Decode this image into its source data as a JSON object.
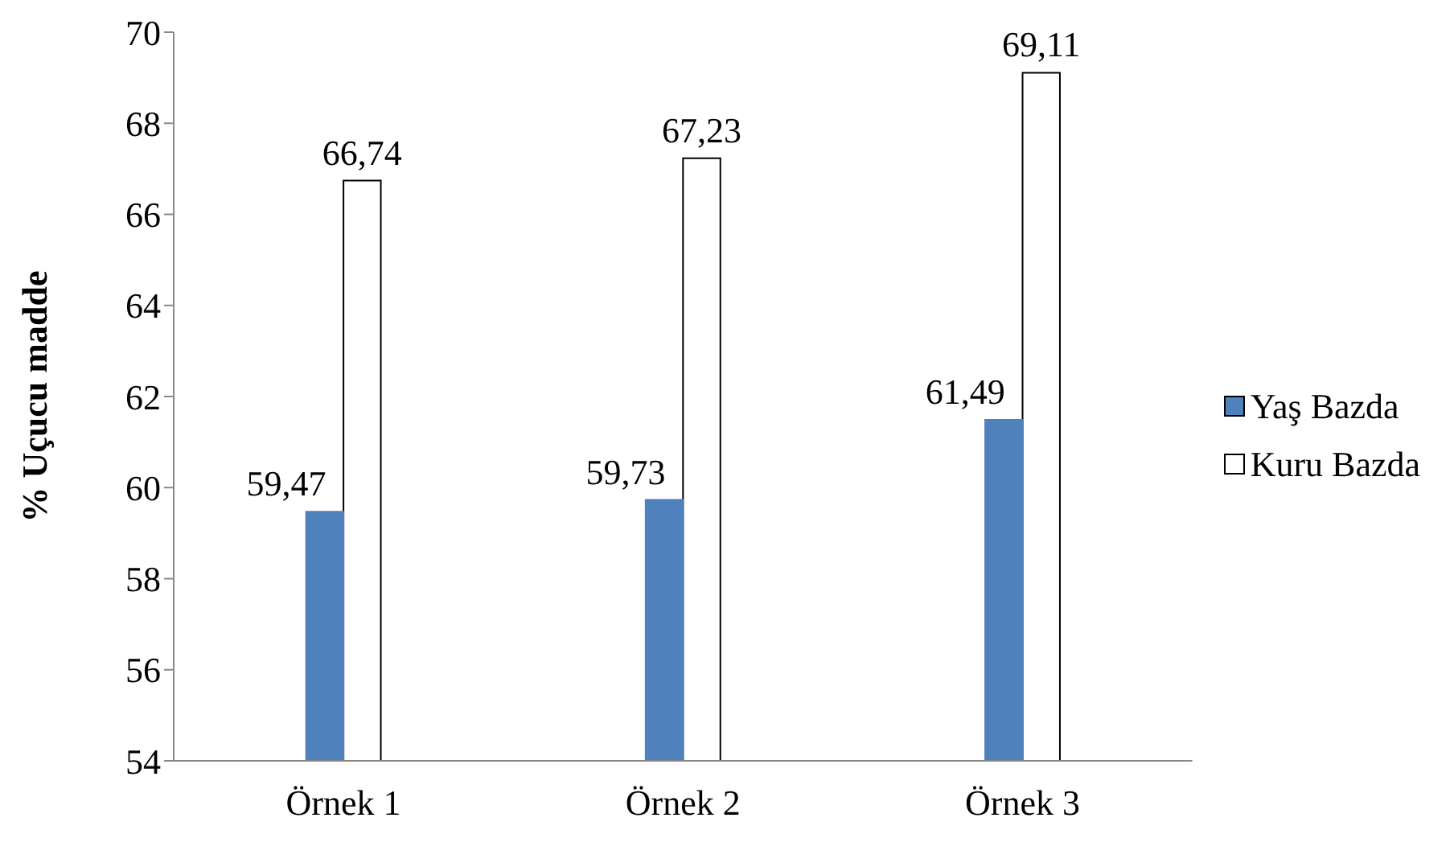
{
  "chart_data": {
    "type": "bar",
    "ylabel": "% Uçucu madde",
    "categories": [
      "Örnek 1",
      "Örnek 2",
      "Örnek 3"
    ],
    "series": [
      {
        "name": "Yaş Bazda",
        "color": "#4f81bd",
        "values": [
          59.47,
          59.73,
          61.49
        ],
        "value_labels": [
          "59,47",
          "59,73",
          "61,49"
        ]
      },
      {
        "name": "Kuru Bazda",
        "color": "#ffffff",
        "values": [
          66.74,
          67.23,
          69.11
        ],
        "value_labels": [
          "66,74",
          "67,23",
          "69,11"
        ]
      }
    ],
    "ylim": [
      54,
      70
    ],
    "yticks": [
      54,
      56,
      58,
      60,
      62,
      64,
      66,
      68,
      70
    ],
    "grid": false,
    "legend": "right"
  }
}
